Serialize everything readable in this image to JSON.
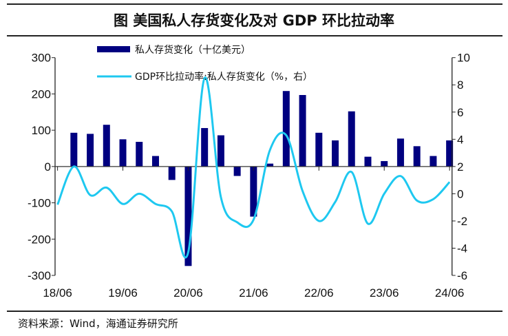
{
  "title": "图  美国私人存货变化及对 GDP 环比拉动率",
  "source": "资料来源：Wind，海通证券研究所",
  "chart_data": {
    "type": "bar+line",
    "title": "图  美国私人存货变化及对 GDP 环比拉动率",
    "x_tick_labels": [
      "18/06",
      "19/06",
      "20/06",
      "21/06",
      "22/06",
      "23/06",
      "24/06"
    ],
    "categories": [
      "18Q2",
      "18Q3",
      "18Q4",
      "19Q1",
      "19Q2",
      "19Q3",
      "19Q4",
      "20Q1",
      "20Q2",
      "20Q3",
      "20Q4",
      "21Q1",
      "21Q2",
      "21Q3",
      "21Q4",
      "22Q1",
      "22Q2",
      "22Q3",
      "22Q4",
      "23Q1",
      "23Q2",
      "23Q3",
      "23Q4",
      "24Q1",
      "24Q2"
    ],
    "left_axis": {
      "ylim": [
        -300,
        300
      ],
      "ticks": [
        300,
        200,
        100,
        0,
        -100,
        -200,
        -300
      ]
    },
    "right_axis": {
      "ylim": [
        -6,
        10
      ],
      "ticks": [
        10,
        8,
        6,
        4,
        2,
        0,
        -2,
        -4,
        -6
      ]
    },
    "legend_placement": "top",
    "grid": false,
    "series": [
      {
        "name": "私人存货变化（十亿美元）",
        "type": "bar",
        "axis": "left",
        "color": "#000080",
        "values": [
          null,
          93,
          90,
          115,
          75,
          68,
          29,
          -37,
          -274,
          106,
          86,
          -26,
          -138,
          8,
          208,
          197,
          93,
          72,
          152,
          27,
          15,
          77,
          56,
          29,
          72
        ]
      },
      {
        "name": "GDP环比拉动率:私人存货变化（%，右）",
        "type": "line",
        "axis": "right",
        "color": "#1EC8F0",
        "values": [
          -0.8,
          2.0,
          -0.1,
          0.45,
          -0.75,
          0.0,
          -0.75,
          -1.3,
          -4.3,
          8.5,
          -0.25,
          -2.1,
          -1.9,
          3.2,
          4.3,
          0.2,
          -2.0,
          -0.6,
          1.6,
          -2.2,
          0.0,
          1.3,
          -0.5,
          -0.4,
          0.86
        ]
      }
    ]
  }
}
